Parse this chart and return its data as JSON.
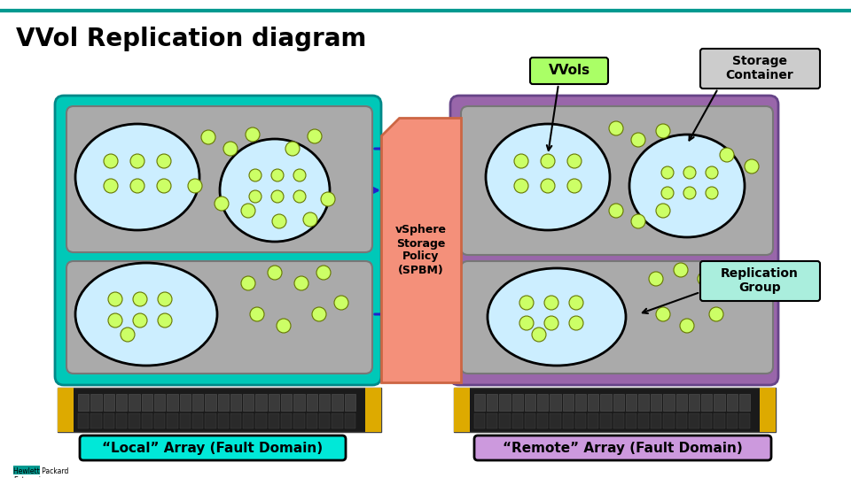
{
  "title": "VVol Replication diagram",
  "title_fontsize": 20,
  "background_color": "#ffffff",
  "teal_line_color": "#009990",
  "local_bg": "#00c8b8",
  "remote_bg": "#9966aa",
  "inner_gray": "#aaaaaa",
  "spbm_color": "#f4907a",
  "spbm_edge": "#cc6644",
  "ellipse_fill": "#cceeff",
  "ellipse_edge": "#000000",
  "dot_fill": "#ccff66",
  "dot_edge": "#667700",
  "arrow_color": "#2222cc",
  "local_label_text": "“Local” Array (Fault Domain)",
  "remote_label_text": "“Remote” Array (Fault Domain)",
  "local_label_bg": "#00e8d8",
  "remote_label_bg": "#cc99dd",
  "vvols_bg": "#aaff66",
  "sc_bg": "#cccccc",
  "rg_bg": "#aaeedd",
  "server_body": "#1a1a1a",
  "server_gold": "#ddaa00",
  "server_bay": "#3a3a3a"
}
